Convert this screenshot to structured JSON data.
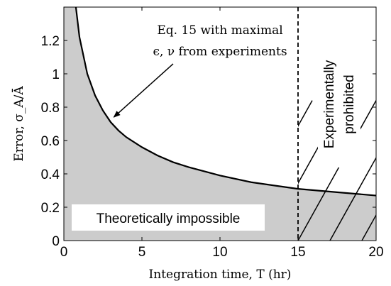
{
  "chart_data": {
    "type": "line",
    "xlabel": "Integration time, T (hr)",
    "ylabel": "Error, σ_A/Ā",
    "xlim": [
      0,
      20
    ],
    "ylim": [
      0,
      1.4
    ],
    "x_ticks": [
      0,
      5,
      10,
      15,
      20
    ],
    "y_ticks": [
      0,
      0.2,
      0.4,
      0.6,
      0.8,
      1,
      1.2
    ],
    "x_tick_labels": [
      "0",
      "5",
      "10",
      "15",
      "20"
    ],
    "y_tick_labels": [
      "0",
      "0.2",
      "0.4",
      "0.6",
      "0.8",
      "1",
      "1.2"
    ],
    "grid": false,
    "series": [
      {
        "style": "solid black line; region below shaded grey",
        "x": [
          0.77,
          1,
          1.5,
          2,
          2.5,
          3,
          3.5,
          4,
          5,
          6,
          7,
          8,
          10,
          12,
          15,
          17.5,
          20
        ],
        "y": [
          1.4,
          1.22,
          1.0,
          0.87,
          0.78,
          0.71,
          0.66,
          0.62,
          0.56,
          0.51,
          0.47,
          0.44,
          0.39,
          0.35,
          0.31,
          0.29,
          0.27
        ]
      }
    ],
    "vertical_line": {
      "x": 15,
      "style": "dashed"
    },
    "hatched_region": {
      "x_from": 15,
      "x_to": 20
    },
    "annotations": {
      "curve_label_line1": "Eq. 15 with maximal",
      "curve_label_line2": "ϵ, ν from experiments",
      "arrow_from": [
        7.0,
        1.06
      ],
      "arrow_to": [
        3.2,
        0.74
      ],
      "impossible_label": "Theoretically impossible",
      "prohibited_line1": "Experimentally",
      "prohibited_line2": "prohibited"
    },
    "colors": {
      "shade": "#cccccc",
      "line": "#000000",
      "hatch": "#000000"
    }
  }
}
